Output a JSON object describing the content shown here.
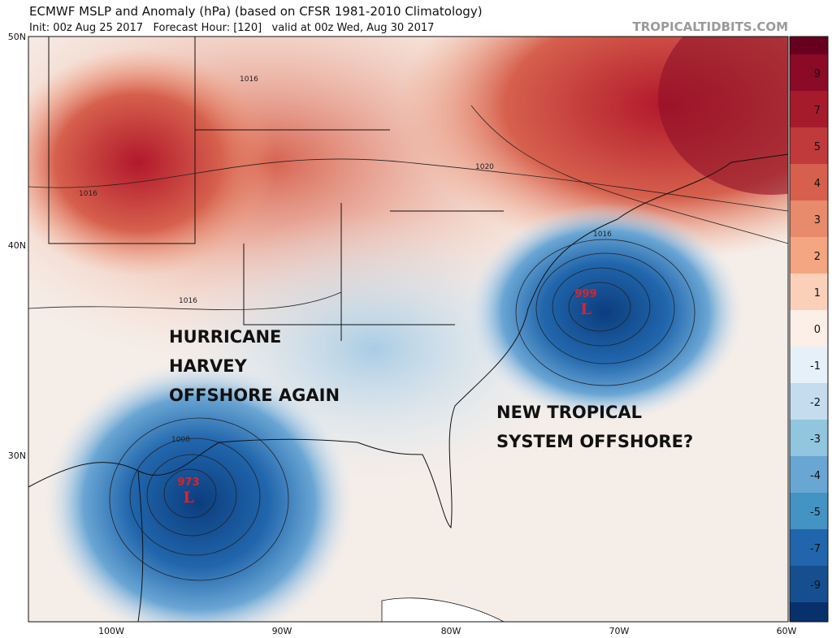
{
  "header": {
    "title": "ECMWF MSLP and Anomaly (hPa) (based on CFSR 1981-2010 Climatology)",
    "subtitle": "Init: 00z Aug 25 2017   Forecast Hour: [120]   valid at 00z Wed, Aug 30 2017",
    "brand": "TROPICALTIDBITS.COM"
  },
  "map": {
    "lat_labels": [
      "50N",
      "40N",
      "30N"
    ],
    "lon_labels": [
      "100W",
      "90W",
      "80W",
      "70W",
      "60W"
    ],
    "isobar_labels": [
      "1016",
      "1016",
      "1016",
      "1020",
      "1016",
      "1008"
    ],
    "annotations": [
      [
        "HURRICANE",
        "HARVEY",
        "OFFSHORE AGAIN"
      ],
      [
        "NEW TROPICAL",
        "SYSTEM OFFSHORE?"
      ]
    ],
    "lows": [
      {
        "pressure": "973",
        "symbol": "L"
      },
      {
        "pressure": "999",
        "symbol": "L"
      }
    ]
  },
  "colorbar": {
    "labels": [
      "9",
      "7",
      "5",
      "4",
      "3",
      "2",
      "1",
      "0",
      "-1",
      "-2",
      "-3",
      "-4",
      "-5",
      "-7",
      "-9"
    ]
  }
}
